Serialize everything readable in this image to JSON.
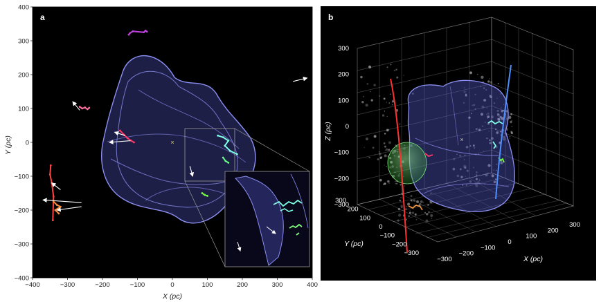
{
  "chart_data": [
    {
      "panel": "a",
      "type": "scatter",
      "xlabel": "X (pc)",
      "ylabel": "Y (pc)",
      "xlim": [
        -400,
        400
      ],
      "ylim": [
        -400,
        400
      ],
      "xticks": [
        -400,
        -300,
        -200,
        -100,
        0,
        100,
        200,
        300,
        400
      ],
      "yticks": [
        -400,
        -300,
        -200,
        -100,
        0,
        100,
        200,
        300,
        400
      ],
      "background": "#000000",
      "shell_color": "#7d7fe6",
      "clusters": [
        {
          "color": "#c040e0",
          "points": [
            [
              -125,
              318
            ],
            [
              -120,
              324
            ],
            [
              -113,
              328
            ],
            [
              -82,
              325
            ],
            [
              -77,
              330
            ],
            [
              -73,
              327
            ]
          ]
        },
        {
          "color": "#ff6fa0",
          "points": [
            [
              -265,
              105
            ],
            [
              -258,
              100
            ],
            [
              -250,
              103
            ],
            [
              -243,
              98
            ],
            [
              -238,
              102
            ]
          ]
        },
        {
          "color": "#ff3b6b",
          "points": [
            [
              -150,
              35
            ],
            [
              -138,
              22
            ],
            [
              -128,
              12
            ],
            [
              -118,
              5
            ],
            [
              -110,
              0
            ]
          ]
        },
        {
          "color": "#ff4444",
          "points": [
            [
              -348,
              -68
            ],
            [
              -350,
              -95
            ],
            [
              -345,
              -120
            ],
            [
              -340,
              -160
            ],
            [
              -342,
              -230
            ]
          ]
        },
        {
          "color": "#ff8c3a",
          "points": [
            [
              -340,
              -175
            ],
            [
              -330,
              -185
            ],
            [
              -320,
              -190
            ],
            [
              -335,
              -200
            ],
            [
              -325,
              -210
            ]
          ]
        },
        {
          "color": "#7fffe6",
          "points": [
            [
              130,
              20
            ],
            [
              145,
              15
            ],
            [
              160,
              5
            ],
            [
              150,
              -10
            ],
            [
              165,
              -25
            ],
            [
              185,
              -35
            ]
          ]
        },
        {
          "color": "#66ff88",
          "points": [
            [
              145,
              -45
            ],
            [
              152,
              -55
            ],
            [
              160,
              -60
            ]
          ]
        },
        {
          "color": "#77ff44",
          "points": [
            [
              85,
              -150
            ],
            [
              92,
              -155
            ],
            [
              100,
              -158
            ]
          ]
        }
      ],
      "arrows": [
        {
          "from": [
            -265,
            95
          ],
          "to": [
            -285,
            120
          ]
        },
        {
          "from": [
            -135,
            20
          ],
          "to": [
            -165,
            30
          ]
        },
        {
          "from": [
            -120,
            5
          ],
          "to": [
            -180,
            0
          ]
        },
        {
          "from": [
            -320,
            -140
          ],
          "to": [
            -345,
            -120
          ]
        },
        {
          "from": [
            -260,
            -178
          ],
          "to": [
            -370,
            -170
          ]
        },
        {
          "from": [
            -260,
            -190
          ],
          "to": [
            -330,
            -200
          ]
        },
        {
          "from": [
            345,
            180
          ],
          "to": [
            385,
            190
          ]
        },
        {
          "from": [
            50,
            -70
          ],
          "to": [
            58,
            -100
          ]
        }
      ],
      "sun_marker": [
        0,
        0
      ],
      "inset_region": {
        "x": [
          30,
          175
        ],
        "y": [
          -105,
          45
        ]
      }
    },
    {
      "panel": "b",
      "type": "scatter",
      "xlabel": "X (pc)",
      "ylabel": "Y (pc)",
      "zlabel": "Z (pc)",
      "xticks": [
        -300,
        -200,
        -100,
        0,
        100,
        200,
        300
      ],
      "yticks": [
        -300,
        -200,
        -100,
        0,
        100,
        200,
        300
      ],
      "zticks": [
        -300,
        -200,
        -100,
        0,
        100,
        200,
        300
      ],
      "background": "#000000",
      "shell_color": "#7d7fe6",
      "sphere_color": "#55d055",
      "lines": [
        {
          "color": "#ff3030"
        },
        {
          "color": "#4c8fff"
        }
      ]
    }
  ],
  "panels": {
    "a_label": "a",
    "b_label": "b",
    "a_xlabel": "X (pc)",
    "a_ylabel": "Y (pc)",
    "b_xlabel": "X (pc)",
    "b_ylabel": "Y (pc)",
    "b_zlabel": "Z (pc)"
  }
}
